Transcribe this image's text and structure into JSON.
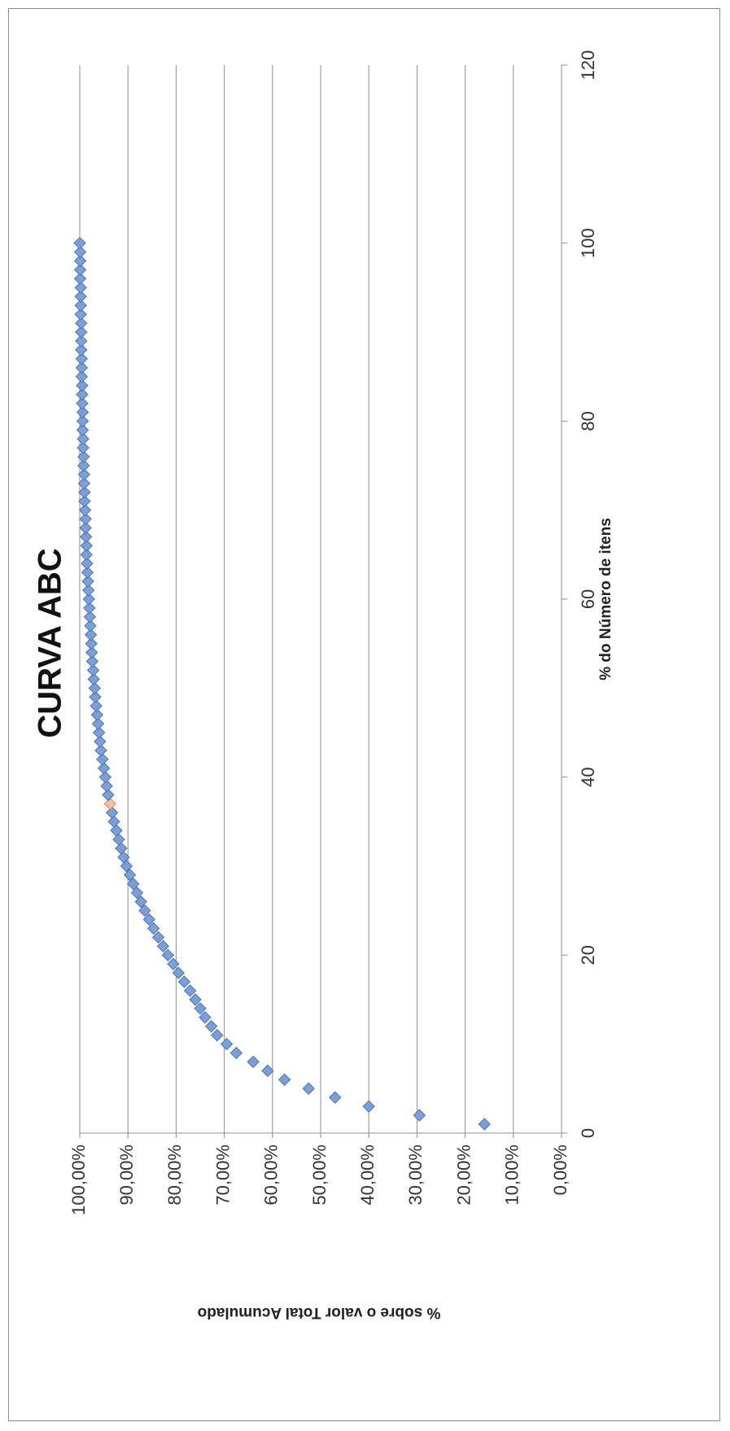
{
  "chart_data": {
    "type": "scatter",
    "title": "CURVA ABC",
    "xlabel": "% do Número de itens",
    "ylabel": "% sobre o valor Total Acumulado",
    "xlim": [
      0,
      120
    ],
    "ylim": [
      0,
      1
    ],
    "x_ticks": [
      "0",
      "20",
      "40",
      "60",
      "80",
      "100",
      "120"
    ],
    "y_ticks": [
      "0,00%",
      "10,00%",
      "20,00%",
      "30,00%",
      "40,00%",
      "50,00%",
      "60,00%",
      "70,00%",
      "80,00%",
      "90,00%",
      "100,00%"
    ],
    "grid": true,
    "rotated": "90-degrees-counterclockwise",
    "marker_color": "#7c9fd8",
    "marker_stroke": "#4a74b8",
    "highlight_color": "#e08a58",
    "highlight_x": 37,
    "x": [
      1,
      2,
      3,
      4,
      5,
      6,
      7,
      8,
      9,
      10,
      11,
      12,
      13,
      14,
      15,
      16,
      17,
      18,
      19,
      20,
      21,
      22,
      23,
      24,
      25,
      26,
      27,
      28,
      29,
      30,
      31,
      32,
      33,
      34,
      35,
      36,
      37,
      38,
      39,
      40,
      41,
      42,
      43,
      44,
      45,
      46,
      47,
      48,
      49,
      50,
      51,
      52,
      53,
      54,
      55,
      56,
      57,
      58,
      59,
      60,
      61,
      62,
      63,
      64,
      65,
      66,
      67,
      68,
      69,
      70,
      71,
      72,
      73,
      74,
      75,
      76,
      77,
      78,
      79,
      80,
      81,
      82,
      83,
      84,
      85,
      86,
      87,
      88,
      89,
      90,
      91,
      92,
      93,
      94,
      95,
      96,
      97,
      98,
      99,
      100
    ],
    "y": [
      0.16,
      0.295,
      0.4,
      0.47,
      0.525,
      0.575,
      0.61,
      0.64,
      0.675,
      0.695,
      0.715,
      0.727,
      0.74,
      0.75,
      0.76,
      0.771,
      0.783,
      0.795,
      0.806,
      0.817,
      0.827,
      0.837,
      0.847,
      0.856,
      0.865,
      0.873,
      0.881,
      0.889,
      0.896,
      0.903,
      0.909,
      0.914,
      0.919,
      0.924,
      0.929,
      0.933,
      0.937,
      0.941,
      0.944,
      0.947,
      0.95,
      0.953,
      0.956,
      0.958,
      0.96,
      0.962,
      0.964,
      0.966,
      0.968,
      0.969,
      0.971,
      0.972,
      0.974,
      0.975,
      0.976,
      0.977,
      0.978,
      0.979,
      0.98,
      0.981,
      0.982,
      0.983,
      0.984,
      0.985,
      0.986,
      0.986,
      0.987,
      0.988,
      0.988,
      0.989,
      0.99,
      0.99,
      0.991,
      0.991,
      0.992,
      0.992,
      0.993,
      0.993,
      0.994,
      0.994,
      0.994,
      0.995,
      0.995,
      0.995,
      0.996,
      0.996,
      0.996,
      0.997,
      0.997,
      0.997,
      0.997,
      0.998,
      0.998,
      0.998,
      0.998,
      0.999,
      0.999,
      0.999,
      0.999,
      1.0
    ]
  }
}
